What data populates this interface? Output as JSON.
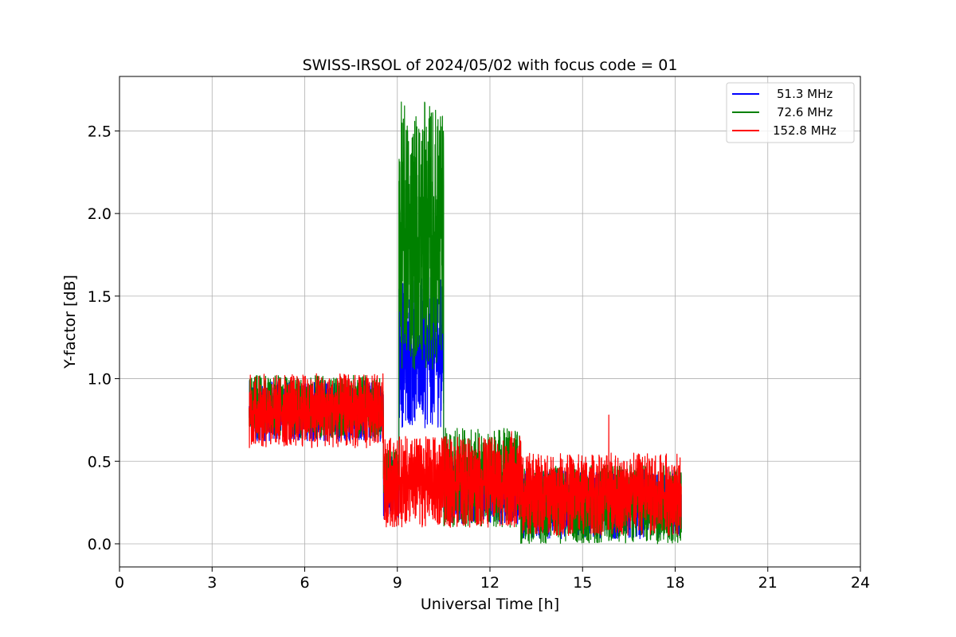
{
  "chart_data": {
    "type": "line",
    "title": "SWISS-IRSOL of 2024/05/02 with focus code = 01",
    "xlabel": "Universal Time [h]",
    "ylabel": "Y-factor [dB]",
    "xlim": [
      0,
      24
    ],
    "ylim": [
      -0.14,
      2.83
    ],
    "xticks": [
      0,
      3,
      6,
      9,
      12,
      15,
      18,
      21,
      24
    ],
    "xtick_labels": [
      "0",
      "3",
      "6",
      "9",
      "12",
      "15",
      "18",
      "21",
      "24"
    ],
    "yticks": [
      0.0,
      0.5,
      1.0,
      1.5,
      2.0,
      2.5
    ],
    "ytick_labels": [
      "0.0",
      "0.5",
      "1.0",
      "1.5",
      "2.0",
      "2.5"
    ],
    "grid": true,
    "legend_position": "top-right",
    "series": [
      {
        "name": "51.3 MHz",
        "color": "#0000ff",
        "envelope": [
          {
            "x": [
              4.2,
              8.55
            ],
            "low": 0.62,
            "high": 0.99
          },
          {
            "x": [
              8.55,
              9.05
            ],
            "low": 0.15,
            "high": 0.55
          },
          {
            "x": [
              9.05,
              10.5
            ],
            "low": 0.7,
            "high": 1.62
          },
          {
            "x": [
              10.5,
              13.0
            ],
            "low": 0.12,
            "high": 0.5
          },
          {
            "x": [
              13.0,
              18.2
            ],
            "low": 0.03,
            "high": 0.45
          }
        ]
      },
      {
        "name": "72.6 MHz",
        "color": "#008000",
        "envelope": [
          {
            "x": [
              4.2,
              8.55
            ],
            "low": 0.64,
            "high": 1.02
          },
          {
            "x": [
              8.55,
              9.05
            ],
            "low": 0.2,
            "high": 0.58
          },
          {
            "x": [
              9.05,
              10.5
            ],
            "low": 1.05,
            "high": 2.68
          },
          {
            "x": [
              10.5,
              13.0
            ],
            "low": 0.1,
            "high": 0.7
          },
          {
            "x": [
              13.0,
              18.2
            ],
            "low": 0.0,
            "high": 0.48
          }
        ]
      },
      {
        "name": "152.8 MHz",
        "color": "#ff0000",
        "envelope": [
          {
            "x": [
              4.2,
              8.55
            ],
            "low": 0.58,
            "high": 1.03
          },
          {
            "x": [
              8.55,
              13.0
            ],
            "low": 0.1,
            "high": 0.65
          },
          {
            "x": [
              13.0,
              18.2
            ],
            "low": 0.05,
            "high": 0.55
          }
        ],
        "spikes": [
          {
            "x": 15.85,
            "y": 0.78
          },
          {
            "x": 12.7,
            "y": 0.68
          }
        ]
      }
    ]
  }
}
